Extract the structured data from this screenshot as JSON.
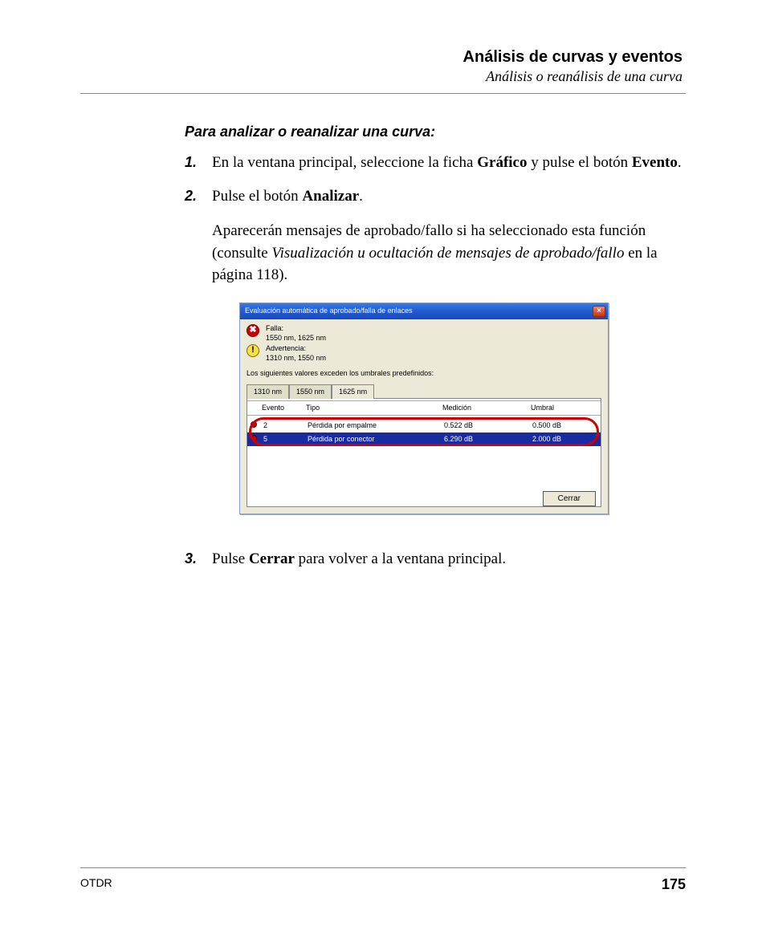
{
  "header": {
    "title": "Análisis de curvas y eventos",
    "subtitle": "Análisis o reanálisis de una curva"
  },
  "instr_title": "Para analizar o reanalizar una curva:",
  "steps": {
    "n1": "1.",
    "n2": "2.",
    "n3": "3.",
    "s1a": "En la ventana principal, seleccione la ficha ",
    "s1b": "Gráfico",
    "s1c": " y pulse el botón ",
    "s1d": "Evento",
    "s1e": ".",
    "s2a": "Pulse el botón ",
    "s2b": "Analizar",
    "s2c": ".",
    "s2p2a": "Aparecerán mensajes de aprobado/fallo si ha seleccionado esta función (consulte ",
    "s2p2b": "Visualización u ocultación de mensajes de aprobado/fallo",
    "s2p2c": " en la página 118).",
    "s3a": "Pulse ",
    "s3b": "Cerrar",
    "s3c": " para volver a la ventana principal."
  },
  "dialog": {
    "title": "Evaluación automática de aprobado/falla de enlaces",
    "fail_label": "Falla:",
    "fail_vals": "1550 nm, 1625 nm",
    "warn_label": "Advertencia:",
    "warn_vals": "1310 nm, 1550 nm",
    "note": "Los siguientes valores exceden los umbrales predefinidos:",
    "tabs": {
      "t1": "1310 nm",
      "t2": "1550 nm",
      "t3": "1625 nm"
    },
    "headers": {
      "evento": "Evento",
      "tipo": "Tipo",
      "medicion": "Medición",
      "umbral": "Umbral"
    },
    "rows": {
      "r1": {
        "ev": "2",
        "tipo": "Pérdida por empalme",
        "med": "0.522 dB",
        "um": "0.500 dB"
      },
      "r2": {
        "ev": "5",
        "tipo": "Pérdida por conector",
        "med": "6.290 dB",
        "um": "2.000 dB"
      }
    },
    "close_btn": "Cerrar"
  },
  "footer": {
    "product": "OTDR",
    "page": "175"
  }
}
